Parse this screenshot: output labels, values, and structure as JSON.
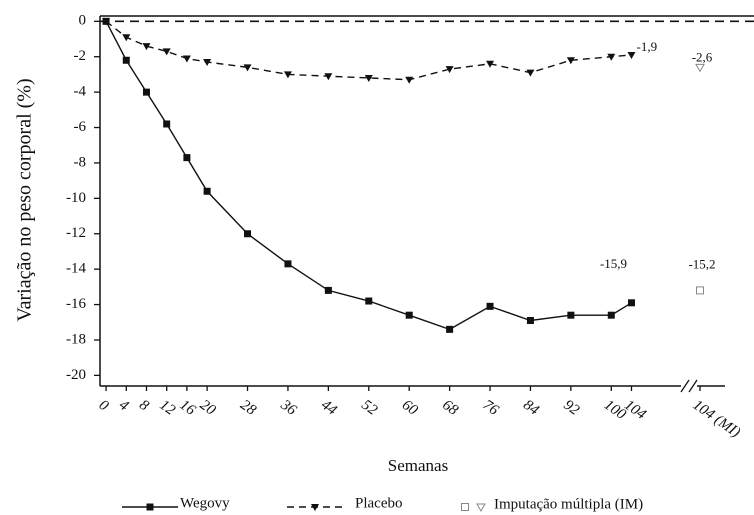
{
  "chart_data": {
    "type": "line",
    "xlabel": "Semanas",
    "ylabel": "Variação no peso corporal (%)",
    "x": [
      0,
      4,
      8,
      12,
      16,
      20,
      28,
      36,
      44,
      52,
      60,
      68,
      76,
      84,
      92,
      100,
      104
    ],
    "xlim": [
      -1.2,
      113.8
    ],
    "xticks": [
      0,
      4,
      8,
      12,
      16,
      20,
      28,
      36,
      44,
      52,
      60,
      68,
      76,
      84,
      92,
      100,
      104
    ],
    "ylim": [
      -20.6,
      0.3
    ],
    "yticks": [
      -20,
      -18,
      -16,
      -14,
      -12,
      -10,
      -8,
      -6,
      -4,
      -2,
      0
    ],
    "reference_line": 0,
    "mi_tick_label": "104 (MI)",
    "mi_legend": "Imputação múltipla (IM)",
    "series": [
      {
        "name": "Wegovy",
        "color": "#111111",
        "marker": "square",
        "dash": "solid",
        "values": [
          0,
          -2.2,
          -4.0,
          -5.8,
          -7.7,
          -9.6,
          -12.0,
          -13.7,
          -15.2,
          -15.8,
          -16.6,
          -17.4,
          -16.1,
          -16.9,
          -16.6,
          -16.6,
          -15.9
        ],
        "value_labels": [
          null,
          null,
          null,
          null,
          null,
          null,
          null,
          null,
          null,
          null,
          null,
          null,
          null,
          null,
          null,
          null,
          "-15,9"
        ],
        "mi_value": -15.2,
        "mi_value_label": "-15,2"
      },
      {
        "name": "Placebo",
        "color": "#111111",
        "marker": "triangle",
        "dash": "dashed",
        "values": [
          0,
          -0.9,
          -1.4,
          -1.7,
          -2.1,
          -2.3,
          -2.6,
          -3.0,
          -3.1,
          -3.2,
          -3.3,
          -2.7,
          -2.4,
          -2.9,
          -2.2,
          -2.0,
          -1.9
        ],
        "value_labels": [
          null,
          null,
          null,
          null,
          null,
          null,
          null,
          null,
          null,
          null,
          null,
          null,
          null,
          null,
          null,
          null,
          "-1,9"
        ],
        "mi_value": -2.6,
        "mi_value_label": "-2,6"
      }
    ]
  }
}
